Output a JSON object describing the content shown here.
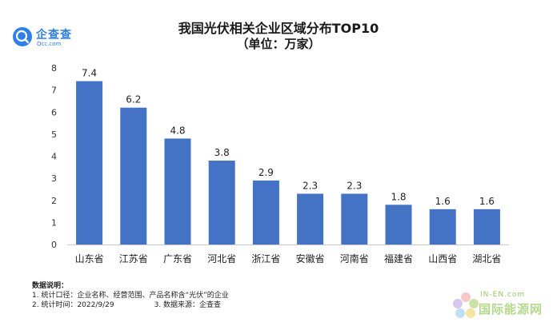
{
  "logo": {
    "name": "企查查",
    "domain": "Qcc.com"
  },
  "chart_data": {
    "type": "bar",
    "title": "我国光伏相关企业区域分布TOP10",
    "subtitle": "（单位：万家）",
    "categories": [
      "山东省",
      "江苏省",
      "广东省",
      "河北省",
      "浙江省",
      "安徽省",
      "河南省",
      "福建省",
      "山西省",
      "湖北省"
    ],
    "values": [
      7.4,
      6.2,
      4.8,
      3.8,
      2.9,
      2.3,
      2.3,
      1.8,
      1.6,
      1.6
    ],
    "data_labels": [
      "7.4",
      "6.2",
      "4.8",
      "3.8",
      "2.9",
      "2.3",
      "2.3",
      "1.8",
      "1.6",
      "1.6"
    ],
    "yticks": [
      0,
      1,
      2,
      3,
      4,
      5,
      6,
      7,
      8
    ],
    "ylim": [
      0,
      8
    ],
    "xlabel": "",
    "ylabel": "",
    "grid": false,
    "bar_color": "#4472c4"
  },
  "notes": {
    "heading": "数据说明：",
    "line1": "1. 统计口径：企业名称、经营范围、产品名称含“光伏”的企业",
    "line2a": "2. 统计时间：2022/9/29",
    "line2b": "3. 数据来源：企查查"
  },
  "watermark": {
    "top": "IN-EN.com",
    "main": "国际能源网"
  }
}
